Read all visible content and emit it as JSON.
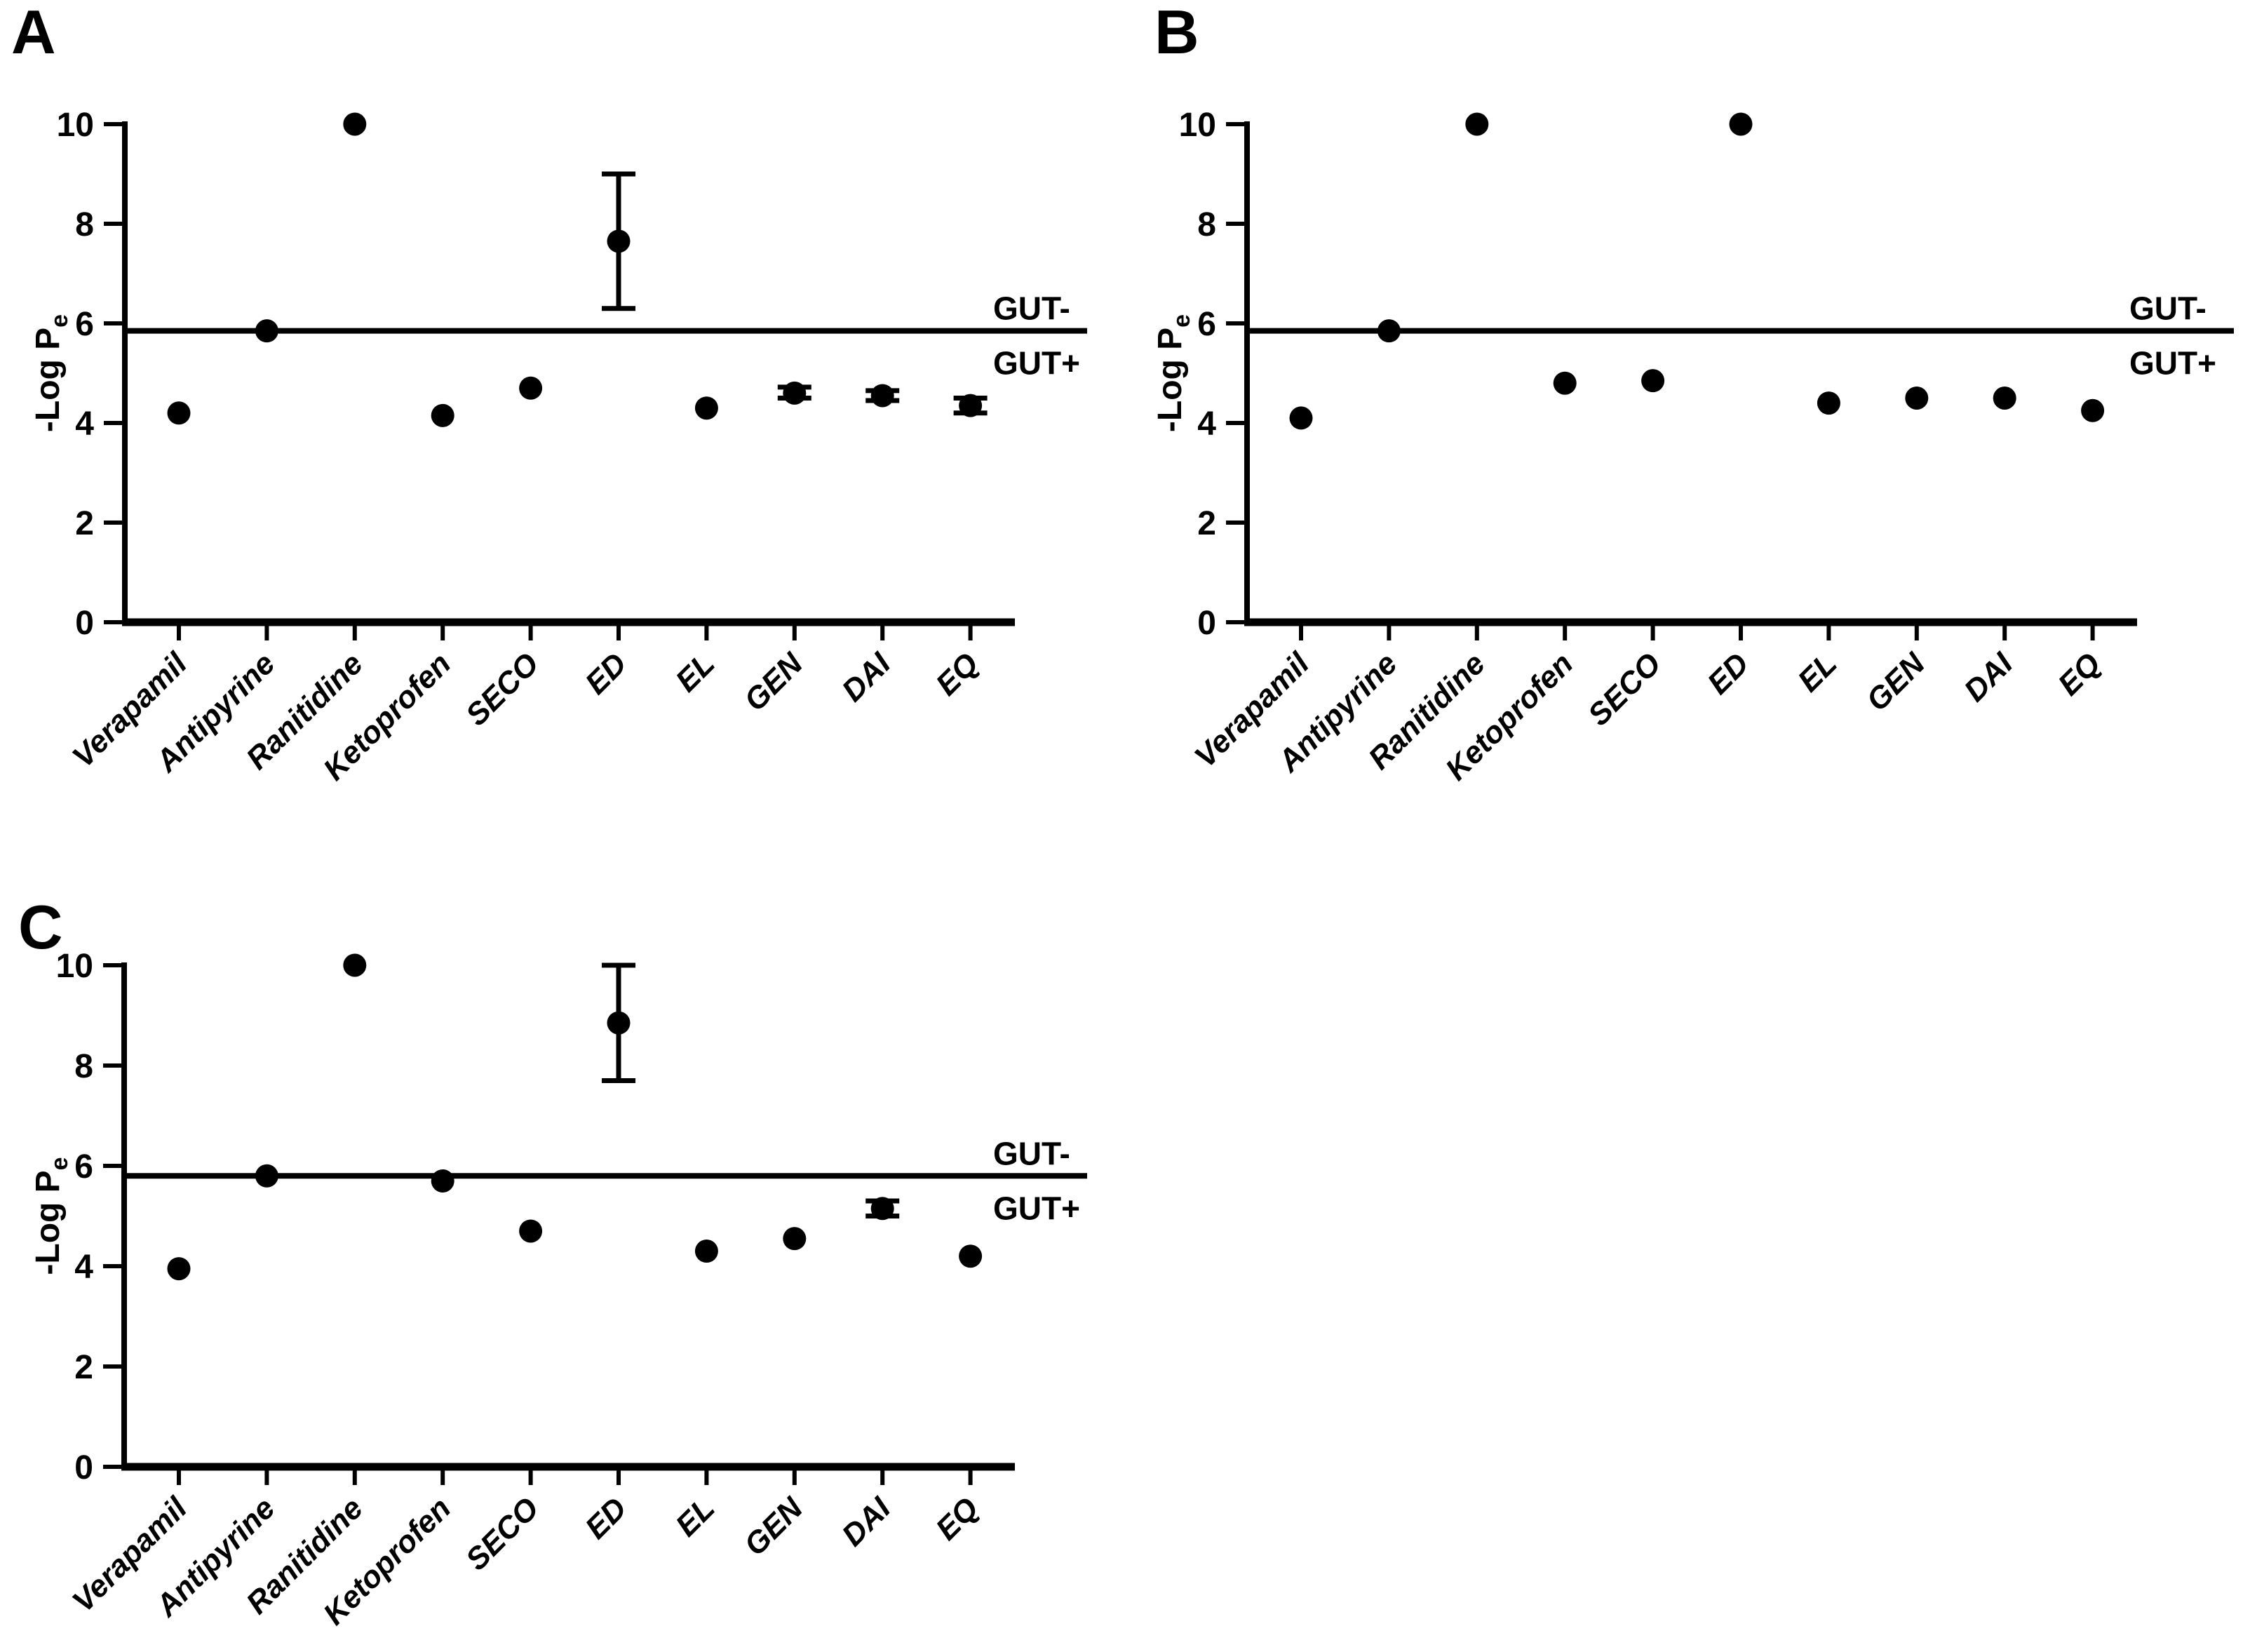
{
  "figure": {
    "background": "#ffffff",
    "ink": "#000000"
  },
  "chart_data": [
    {
      "type": "scatter",
      "panel": "A",
      "ylabel": "-Log P",
      "ylabel_sub": "e",
      "ylim": [
        0,
        10
      ],
      "yticks": [
        0,
        2,
        4,
        6,
        8,
        10
      ],
      "grid": "off",
      "legend": "none",
      "threshold": {
        "value": 5.85,
        "label_above": "GUT-",
        "label_below": "GUT+"
      },
      "categories": [
        "Verapamil",
        "Antipyrine",
        "Ranitidine",
        "Ketoprofen",
        "SECO",
        "ED",
        "EL",
        "GEN",
        "DAI",
        "EQ"
      ],
      "values": [
        4.2,
        5.85,
        10.0,
        4.15,
        4.7,
        7.65,
        4.3,
        4.6,
        4.55,
        4.35
      ],
      "error_low": [
        null,
        null,
        null,
        null,
        null,
        6.3,
        null,
        4.5,
        4.45,
        4.2
      ],
      "error_high": [
        null,
        null,
        null,
        null,
        null,
        9.0,
        null,
        4.72,
        4.65,
        4.5
      ]
    },
    {
      "type": "scatter",
      "panel": "B",
      "ylabel": "-Log P",
      "ylabel_sub": "e",
      "ylim": [
        0,
        10
      ],
      "yticks": [
        0,
        2,
        4,
        6,
        8,
        10
      ],
      "grid": "off",
      "legend": "none",
      "threshold": {
        "value": 5.85,
        "label_above": "GUT-",
        "label_below": "GUT+"
      },
      "categories": [
        "Verapamil",
        "Antipyrine",
        "Ranitidine",
        "Ketoprofen",
        "SECO",
        "ED",
        "EL",
        "GEN",
        "DAI",
        "EQ"
      ],
      "values": [
        4.1,
        5.85,
        10.0,
        4.8,
        4.85,
        10.0,
        4.4,
        4.5,
        4.5,
        4.25
      ],
      "error_low": [
        null,
        null,
        null,
        null,
        null,
        null,
        null,
        null,
        null,
        null
      ],
      "error_high": [
        null,
        null,
        null,
        null,
        null,
        null,
        null,
        null,
        null,
        null
      ]
    },
    {
      "type": "scatter",
      "panel": "C",
      "ylabel": "-Log P",
      "ylabel_sub": "e",
      "ylim": [
        0,
        10
      ],
      "yticks": [
        0,
        2,
        4,
        6,
        8,
        10
      ],
      "grid": "off",
      "legend": "none",
      "threshold": {
        "value": 5.8,
        "label_above": "GUT-",
        "label_below": "GUT+"
      },
      "categories": [
        "Verapamil",
        "Antipyrine",
        "Ranitidine",
        "Ketoprofen",
        "SECO",
        "ED",
        "EL",
        "GEN",
        "DAI",
        "EQ"
      ],
      "values": [
        3.95,
        5.8,
        10.0,
        5.7,
        4.7,
        8.85,
        4.3,
        4.55,
        5.15,
        4.2
      ],
      "error_low": [
        null,
        null,
        null,
        null,
        null,
        7.7,
        null,
        null,
        5.0,
        null
      ],
      "error_high": [
        null,
        null,
        null,
        null,
        null,
        10.0,
        null,
        null,
        5.3,
        null
      ]
    }
  ]
}
